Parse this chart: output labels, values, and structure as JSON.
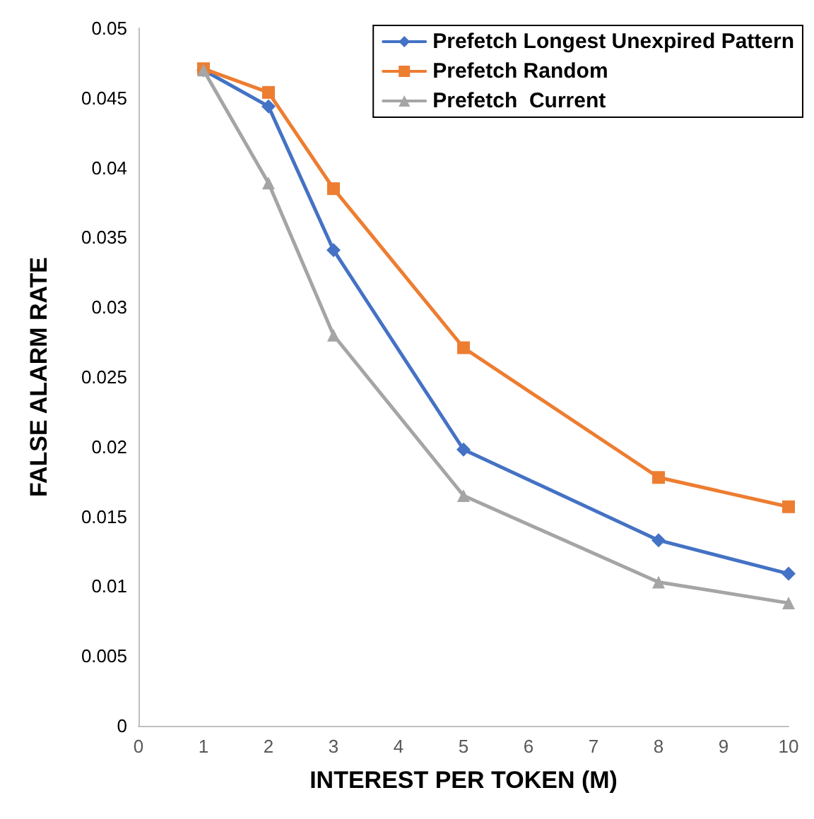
{
  "chart_data": {
    "type": "line",
    "xlabel": "INTEREST PER TOKEN (M)",
    "ylabel": "FALSE ALARM RATE",
    "x": [
      1,
      2,
      3,
      5,
      8,
      10
    ],
    "series": [
      {
        "name": "Prefetch Longest Unexpired Pattern",
        "color": "#4472c4",
        "marker": "diamond",
        "values": [
          0.047,
          0.0444,
          0.0341,
          0.0198,
          0.0133,
          0.0109
        ]
      },
      {
        "name": "Prefetch Random",
        "color": "#ed7d31",
        "marker": "square",
        "values": [
          0.0471,
          0.0454,
          0.0385,
          0.0271,
          0.0178,
          0.0157
        ]
      },
      {
        "name": "Prefetch  Current",
        "color": "#a5a5a5",
        "marker": "triangle",
        "values": [
          0.047,
          0.0389,
          0.028,
          0.0165,
          0.0103,
          0.0088
        ]
      }
    ],
    "xlim": [
      0,
      10
    ],
    "xticks": [
      0,
      1,
      2,
      3,
      4,
      5,
      6,
      7,
      8,
      9,
      10
    ],
    "ylim": [
      0,
      0.05
    ],
    "yticks": [
      0,
      0.005,
      0.01,
      0.015,
      0.02,
      0.025,
      0.03,
      0.035,
      0.04,
      0.045,
      0.05
    ],
    "grid": false,
    "legend": "top right",
    "line_style": "solid"
  }
}
